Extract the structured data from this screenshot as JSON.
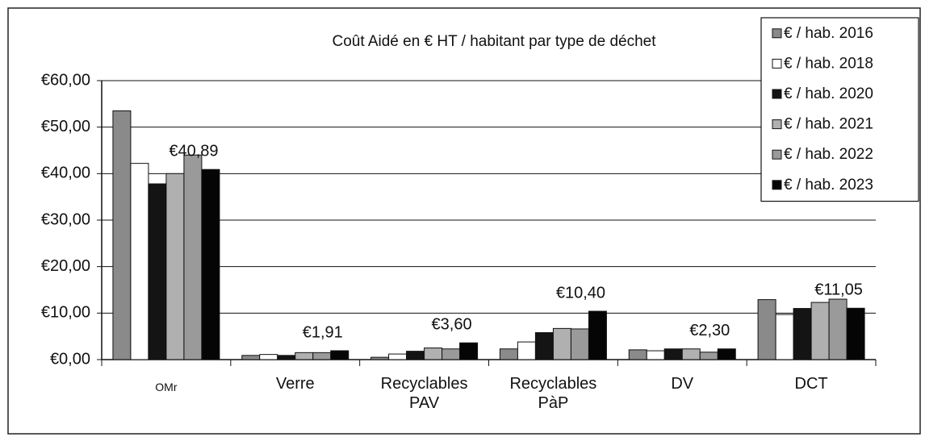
{
  "chart_data": {
    "type": "bar",
    "title": "Coût Aidé en € HT / habitant par type de déchet",
    "categories": [
      "OMr",
      "Verre",
      "Recyclables PAV",
      "Recyclables PàP",
      "DV",
      "DCT"
    ],
    "series": [
      {
        "name": "€ / hab. 2016",
        "color": "#8a8a8a",
        "values": [
          53.5,
          0.9,
          0.5,
          2.3,
          2.1,
          12.9
        ]
      },
      {
        "name": "€ / hab. 2018",
        "color": "#ffffff",
        "values": [
          42.2,
          1.1,
          1.2,
          3.8,
          1.9,
          9.7
        ]
      },
      {
        "name": "€ / hab. 2020",
        "color": "#141414",
        "values": [
          37.8,
          0.9,
          1.8,
          5.8,
          2.3,
          11.0
        ]
      },
      {
        "name": "€ / hab. 2021",
        "color": "#b0b0b0",
        "values": [
          40.0,
          1.5,
          2.5,
          6.7,
          2.3,
          12.3
        ]
      },
      {
        "name": "€ / hab. 2022",
        "color": "#9a9a9a",
        "values": [
          44.0,
          1.5,
          2.3,
          6.6,
          1.6,
          13.0
        ]
      },
      {
        "name": "€ / hab. 2023",
        "color": "#050505",
        "values": [
          40.89,
          1.91,
          3.6,
          10.4,
          2.3,
          11.05
        ],
        "value_labels": [
          "€40,89",
          "€1,91",
          "€3,60",
          "€10,40",
          "€2,30",
          "€11,05"
        ]
      }
    ],
    "ylim": [
      0,
      60
    ],
    "yticks": [
      {
        "value": 0,
        "label": "€0,00"
      },
      {
        "value": 10,
        "label": "€10,00"
      },
      {
        "value": 20,
        "label": "€20,00"
      },
      {
        "value": 30,
        "label": "€30,00"
      },
      {
        "value": 40,
        "label": "€40,00"
      },
      {
        "value": 50,
        "label": "€50,00"
      },
      {
        "value": 60,
        "label": "€60,00"
      }
    ],
    "grid": true,
    "legend": "top-right"
  }
}
